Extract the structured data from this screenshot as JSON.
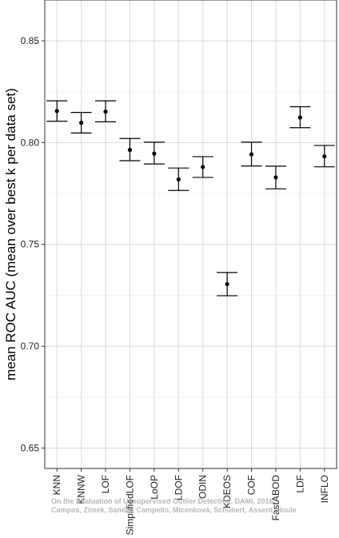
{
  "chart_data": {
    "type": "scatter",
    "error_bars": true,
    "categories": [
      "KNN",
      "KNNW",
      "LOF",
      "SimplifiedLOF",
      "LoOP",
      "LDOF",
      "ODIN",
      "KDEOS",
      "COF",
      "FastABOD",
      "LDF",
      "INFLO"
    ],
    "values": [
      0.8155,
      0.8097,
      0.8152,
      0.7964,
      0.7946,
      0.7819,
      0.788,
      0.7305,
      0.7942,
      0.7829,
      0.8123,
      0.7932
    ],
    "lower": [
      0.8105,
      0.8047,
      0.8102,
      0.7911,
      0.7895,
      0.7765,
      0.7829,
      0.7248,
      0.7885,
      0.7773,
      0.8073,
      0.7881
    ],
    "upper": [
      0.8205,
      0.8148,
      0.8205,
      0.802,
      0.8002,
      0.7875,
      0.7931,
      0.7362,
      0.8002,
      0.7884,
      0.8176,
      0.7986
    ],
    "ylabel": "mean ROC AUC (mean over best k per data set)",
    "yticks": [
      0.65,
      0.7,
      0.75,
      0.8,
      0.85
    ],
    "ytick_labels": [
      "0.65",
      "0.70",
      "0.75",
      "0.80",
      "0.85"
    ],
    "ylim": [
      0.64,
      0.87
    ],
    "grid": true,
    "watermark": [
      "On the Evaluation of Unsupervised Outlier Detection, DAMI, 2016",
      "Campos, Zimek, Sander, Campello, Micenková, Schubert, Assent, Houle"
    ]
  }
}
